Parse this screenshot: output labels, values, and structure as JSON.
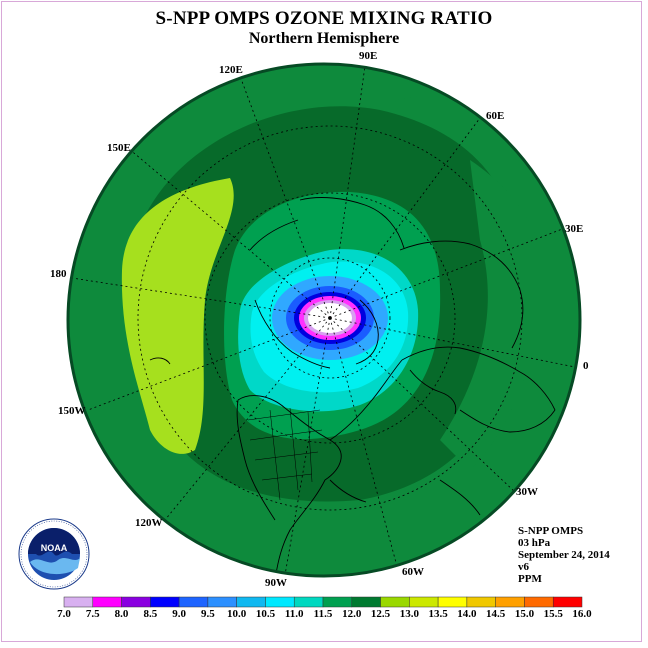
{
  "title": "S-NPP OMPS OZONE MIXING RATIO",
  "subtitle": "Northern Hemisphere",
  "longitude_labels": [
    {
      "name": "lon-90e",
      "text": "90E"
    },
    {
      "name": "lon-60e",
      "text": "60E"
    },
    {
      "name": "lon-30e",
      "text": "30E"
    },
    {
      "name": "lon-0",
      "text": "0"
    },
    {
      "name": "lon-30w",
      "text": "30W"
    },
    {
      "name": "lon-60w",
      "text": "60W"
    },
    {
      "name": "lon-90w",
      "text": "90W"
    },
    {
      "name": "lon-120w",
      "text": "120W"
    },
    {
      "name": "lon-150w",
      "text": "150W"
    },
    {
      "name": "lon-180",
      "text": "180"
    },
    {
      "name": "lon-150e",
      "text": "150E"
    },
    {
      "name": "lon-120e",
      "text": "120E"
    }
  ],
  "info": {
    "instrument": "S-NPP OMPS",
    "level": "03 hPa",
    "date": "September 24, 2014",
    "version": "v6",
    "units": "PPM"
  },
  "colorbar": {
    "ticks": [
      "7.0",
      "7.5",
      "8.0",
      "8.5",
      "9.0",
      "9.5",
      "10.0",
      "10.5",
      "11.0",
      "11.5",
      "12.0",
      "12.5",
      "13.0",
      "13.5",
      "14.0",
      "14.5",
      "15.0",
      "15.5",
      "16.0"
    ],
    "colors": [
      "#b57ae8",
      "#d8b0f0",
      "#ff00ff",
      "#8a00e0",
      "#0000ff",
      "#1e64ff",
      "#2c90ff",
      "#10b8f0",
      "#00e8ff",
      "#00d8c0",
      "#00a050",
      "#007a30",
      "#9ad800",
      "#cce800",
      "#ffff00",
      "#f0c800",
      "#ffa000",
      "#ff6a00",
      "#ff0000",
      "#b00000",
      "#7a5030"
    ]
  },
  "map_colors": {
    "outer": "#0e8a3c",
    "ring_dark": "#076a2a",
    "ring_mid": "#00a050",
    "anomaly": "#a6e01e",
    "cyan": "#00f0f0",
    "aqua": "#00d8c8",
    "light_blue": "#30a8ff",
    "blue": "#1a5cff",
    "deep_blue": "#0000e0",
    "magenta": "#ff30ff",
    "lavender": "#d8a0f0",
    "center": "#ffffff"
  },
  "logo_text": "NOAA"
}
